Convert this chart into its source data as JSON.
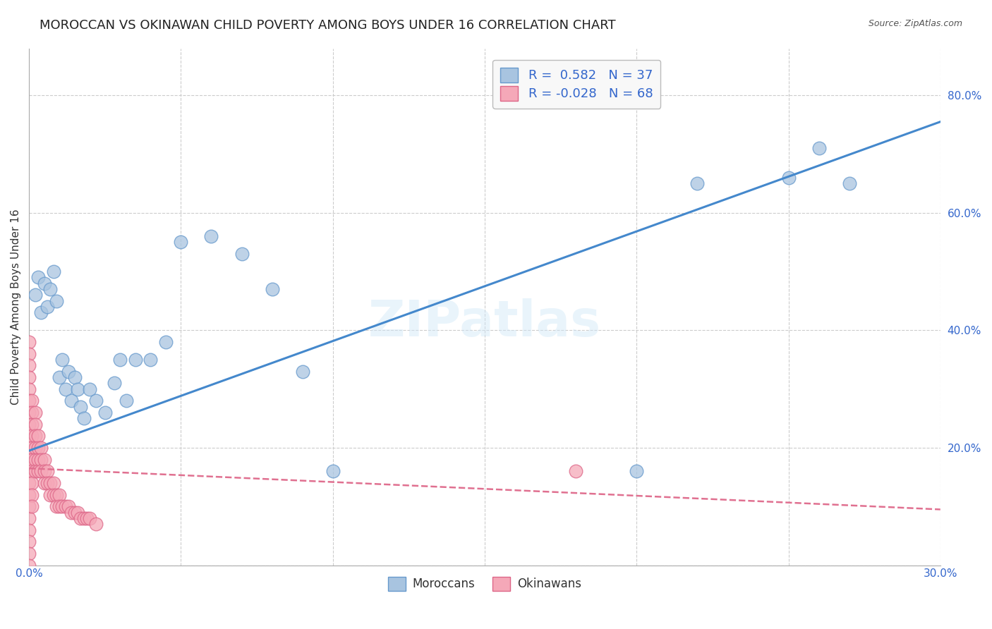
{
  "title": "MOROCCAN VS OKINAWAN CHILD POVERTY AMONG BOYS UNDER 16 CORRELATION CHART",
  "source": "Source: ZipAtlas.com",
  "xlabel_moroccans": "Moroccans",
  "xlabel_okinawans": "Okinawans",
  "ylabel": "Child Poverty Among Boys Under 16",
  "watermark": "ZIPatlas",
  "xlim": [
    0.0,
    0.3
  ],
  "ylim": [
    0.0,
    0.88
  ],
  "xticks": [
    0.0,
    0.05,
    0.1,
    0.15,
    0.2,
    0.25,
    0.3
  ],
  "xticklabels": [
    "0.0%",
    "",
    "",
    "",
    "",
    "",
    "30.0%"
  ],
  "yticks_right": [
    0.0,
    0.2,
    0.4,
    0.6,
    0.8
  ],
  "yticklabels_right": [
    "",
    "20.0%",
    "40.0%",
    "60.0%",
    "80.0%"
  ],
  "moroccan_R": 0.582,
  "moroccan_N": 37,
  "okinawan_R": -0.028,
  "okinawan_N": 68,
  "moroccan_color": "#a8c4e0",
  "moroccan_edge": "#6699cc",
  "moroccan_line_color": "#4488cc",
  "okinawan_color": "#f5a8b8",
  "okinawan_edge": "#dd6688",
  "okinawan_line_color": "#e07090",
  "background_color": "#ffffff",
  "grid_color": "#cccccc",
  "moroccan_x": [
    0.002,
    0.003,
    0.004,
    0.005,
    0.006,
    0.007,
    0.008,
    0.009,
    0.01,
    0.011,
    0.012,
    0.013,
    0.014,
    0.015,
    0.016,
    0.017,
    0.018,
    0.02,
    0.022,
    0.025,
    0.028,
    0.03,
    0.032,
    0.035,
    0.04,
    0.045,
    0.05,
    0.06,
    0.07,
    0.08,
    0.09,
    0.1,
    0.22,
    0.25,
    0.26,
    0.27,
    0.2
  ],
  "moroccan_y": [
    0.46,
    0.49,
    0.43,
    0.48,
    0.44,
    0.47,
    0.5,
    0.45,
    0.32,
    0.35,
    0.3,
    0.33,
    0.28,
    0.32,
    0.3,
    0.27,
    0.25,
    0.3,
    0.28,
    0.26,
    0.31,
    0.35,
    0.28,
    0.35,
    0.35,
    0.38,
    0.55,
    0.56,
    0.53,
    0.47,
    0.33,
    0.16,
    0.65,
    0.66,
    0.71,
    0.65,
    0.16
  ],
  "okinawan_x": [
    0.0,
    0.0,
    0.0,
    0.0,
    0.0,
    0.0,
    0.0,
    0.0,
    0.0,
    0.0,
    0.0,
    0.0,
    0.0,
    0.0,
    0.0,
    0.0,
    0.0,
    0.0,
    0.0,
    0.0,
    0.001,
    0.001,
    0.001,
    0.001,
    0.001,
    0.001,
    0.001,
    0.001,
    0.001,
    0.001,
    0.002,
    0.002,
    0.002,
    0.002,
    0.002,
    0.002,
    0.003,
    0.003,
    0.003,
    0.003,
    0.004,
    0.004,
    0.004,
    0.005,
    0.005,
    0.005,
    0.006,
    0.006,
    0.007,
    0.007,
    0.008,
    0.008,
    0.009,
    0.009,
    0.01,
    0.01,
    0.011,
    0.012,
    0.013,
    0.014,
    0.015,
    0.016,
    0.017,
    0.018,
    0.019,
    0.02,
    0.022,
    0.18
  ],
  "okinawan_y": [
    0.38,
    0.36,
    0.34,
    0.32,
    0.3,
    0.28,
    0.26,
    0.24,
    0.22,
    0.2,
    0.18,
    0.16,
    0.14,
    0.12,
    0.1,
    0.08,
    0.06,
    0.04,
    0.02,
    0.0,
    0.28,
    0.26,
    0.24,
    0.22,
    0.2,
    0.18,
    0.16,
    0.14,
    0.12,
    0.1,
    0.26,
    0.24,
    0.22,
    0.2,
    0.18,
    0.16,
    0.22,
    0.2,
    0.18,
    0.16,
    0.2,
    0.18,
    0.16,
    0.18,
    0.16,
    0.14,
    0.16,
    0.14,
    0.14,
    0.12,
    0.14,
    0.12,
    0.12,
    0.1,
    0.12,
    0.1,
    0.1,
    0.1,
    0.1,
    0.09,
    0.09,
    0.09,
    0.08,
    0.08,
    0.08,
    0.08,
    0.07,
    0.16
  ],
  "moroccan_trend_x": [
    0.0,
    0.3
  ],
  "moroccan_trend_y": [
    0.195,
    0.755
  ],
  "okinawan_trend_x": [
    0.0,
    0.3
  ],
  "okinawan_trend_y": [
    0.165,
    0.095
  ],
  "title_fontsize": 13,
  "axis_label_fontsize": 11,
  "tick_fontsize": 11,
  "legend_fontsize": 13,
  "watermark_fontsize": 52,
  "watermark_color": "#d0e8f8",
  "watermark_alpha": 0.45
}
